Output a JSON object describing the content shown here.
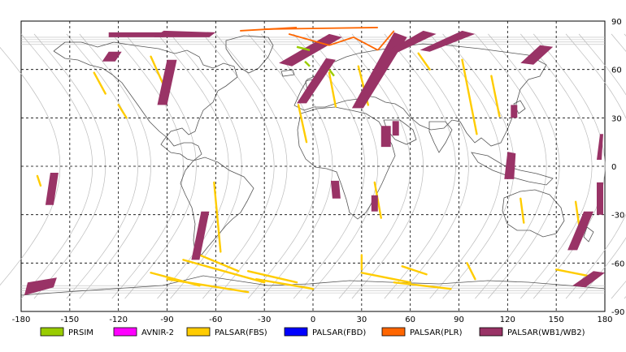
{
  "map": {
    "lon_range": [
      -180,
      180
    ],
    "lat_range": [
      -90,
      90
    ],
    "lon_ticks": [
      "-180",
      "-150",
      "-120",
      "-90",
      "-60",
      "-30",
      "0",
      "30",
      "60",
      "90",
      "120",
      "150",
      "180"
    ],
    "lat_ticks": [
      "90",
      "60",
      "30",
      "0",
      "-30",
      "-60",
      "-90"
    ],
    "grid": "dashed",
    "projection": "equirectangular"
  },
  "legend": {
    "placement": "bottom",
    "items": [
      {
        "label": "PRSIM",
        "color": "#99cc00"
      },
      {
        "label": "AVNIR-2",
        "color": "#ff00ff"
      },
      {
        "label": "PALSAR(FBS)",
        "color": "#ffcc00"
      },
      {
        "label": "PALSAR(FBD)",
        "color": "#0000ff"
      },
      {
        "label": "PALSAR(PLR)",
        "color": "#ff6600"
      },
      {
        "label": "PALSAR(WB1/WB2)",
        "color": "#993366"
      }
    ]
  },
  "colors": {
    "orbit_track": "#bbbbbb",
    "coastline": "#555555",
    "grid": "#000000"
  },
  "observations": {
    "wb": [
      [
        [
          -126,
          80
        ],
        [
          -92,
          80
        ],
        [
          -92,
          83
        ],
        [
          -126,
          83
        ]
      ],
      [
        [
          -130,
          65
        ],
        [
          -122,
          65
        ],
        [
          -118,
          71
        ],
        [
          -126,
          71
        ]
      ],
      [
        [
          -96,
          38
        ],
        [
          -90,
          38
        ],
        [
          -84,
          66
        ],
        [
          -90,
          66
        ]
      ],
      [
        [
          -75,
          -58
        ],
        [
          -70,
          -58
        ],
        [
          -64,
          -28
        ],
        [
          -69,
          -28
        ]
      ],
      [
        [
          -98,
          80
        ],
        [
          -64,
          80
        ],
        [
          -60,
          83
        ],
        [
          -92,
          84
        ]
      ],
      [
        [
          -10,
          39
        ],
        [
          -4,
          39
        ],
        [
          14,
          66
        ],
        [
          8,
          67
        ]
      ],
      [
        [
          -21,
          64
        ],
        [
          -13,
          62
        ],
        [
          18,
          80
        ],
        [
          10,
          82
        ]
      ],
      [
        [
          24,
          36
        ],
        [
          31,
          36
        ],
        [
          58,
          80
        ],
        [
          50,
          83
        ]
      ],
      [
        [
          45,
          71
        ],
        [
          51,
          70
        ],
        [
          76,
          82
        ],
        [
          68,
          84
        ]
      ],
      [
        [
          66,
          72
        ],
        [
          72,
          71
        ],
        [
          100,
          82
        ],
        [
          92,
          84
        ]
      ],
      [
        [
          128,
          64
        ],
        [
          136,
          63
        ],
        [
          148,
          74
        ],
        [
          140,
          75
        ]
      ],
      [
        [
          118,
          -8
        ],
        [
          124,
          -8
        ],
        [
          125,
          8
        ],
        [
          120,
          9
        ]
      ],
      [
        [
          122,
          30
        ],
        [
          126,
          30
        ],
        [
          126,
          38
        ],
        [
          122,
          38
        ]
      ],
      [
        [
          42,
          12
        ],
        [
          48,
          12
        ],
        [
          48,
          25
        ],
        [
          42,
          25
        ]
      ],
      [
        [
          12,
          -20
        ],
        [
          17,
          -20
        ],
        [
          16,
          -9
        ],
        [
          11,
          -9
        ]
      ],
      [
        [
          36,
          -28
        ],
        [
          40,
          -28
        ],
        [
          40,
          -18
        ],
        [
          36,
          -18
        ]
      ],
      [
        [
          49,
          19
        ],
        [
          53,
          19
        ],
        [
          53,
          28
        ],
        [
          49,
          28
        ]
      ],
      [
        [
          -165,
          -24
        ],
        [
          -160,
          -24
        ],
        [
          -157,
          -4
        ],
        [
          -162,
          -4
        ]
      ],
      [
        [
          -178,
          -80
        ],
        [
          -176,
          -72
        ],
        [
          -158,
          -69
        ],
        [
          -160,
          -75
        ]
      ],
      [
        [
          157,
          -52
        ],
        [
          163,
          -52
        ],
        [
          173,
          -28
        ],
        [
          167,
          -28
        ]
      ],
      [
        [
          160,
          -74
        ],
        [
          168,
          -75
        ],
        [
          180,
          -66
        ],
        [
          173,
          -65
        ]
      ],
      [
        [
          175,
          -30
        ],
        [
          179,
          -30
        ],
        [
          179,
          -10
        ],
        [
          175,
          -10
        ]
      ],
      [
        [
          177,
          20
        ],
        [
          179,
          20
        ],
        [
          178,
          4
        ],
        [
          175,
          4
        ]
      ]
    ],
    "fbs": [
      [
        [
          -135,
          58
        ],
        [
          -128,
          45
        ]
      ],
      [
        [
          -100,
          68
        ],
        [
          -92,
          50
        ]
      ],
      [
        [
          -61,
          -10
        ],
        [
          -57,
          -53
        ]
      ],
      [
        [
          -9,
          38
        ],
        [
          -4,
          15
        ]
      ],
      [
        [
          10,
          58
        ],
        [
          14,
          37
        ]
      ],
      [
        [
          28,
          62
        ],
        [
          34,
          38
        ]
      ],
      [
        [
          38,
          -10
        ],
        [
          42,
          -32
        ]
      ],
      [
        [
          65,
          70
        ],
        [
          72,
          60
        ]
      ],
      [
        [
          92,
          66
        ],
        [
          101,
          20
        ]
      ],
      [
        [
          110,
          56
        ],
        [
          115,
          31
        ]
      ],
      [
        [
          128,
          -20
        ],
        [
          130,
          -35
        ]
      ],
      [
        [
          162,
          -22
        ],
        [
          164,
          -36
        ]
      ],
      [
        [
          -70,
          -55
        ],
        [
          -46,
          -65
        ]
      ],
      [
        [
          -80,
          -58
        ],
        [
          -30,
          -72
        ]
      ],
      [
        [
          -90,
          -70
        ],
        [
          -40,
          -78
        ]
      ],
      [
        [
          -100,
          -66
        ],
        [
          -70,
          -74
        ]
      ],
      [
        [
          -40,
          -65
        ],
        [
          -10,
          -72
        ]
      ],
      [
        [
          -35,
          -70
        ],
        [
          0,
          -76
        ]
      ],
      [
        [
          30,
          -55
        ],
        [
          30,
          -64
        ]
      ],
      [
        [
          55,
          -62
        ],
        [
          70,
          -67
        ]
      ],
      [
        [
          30,
          -66
        ],
        [
          60,
          -72
        ]
      ],
      [
        [
          50,
          -72
        ],
        [
          85,
          -76
        ]
      ],
      [
        [
          95,
          -60
        ],
        [
          100,
          -70
        ]
      ],
      [
        [
          150,
          -64
        ],
        [
          175,
          -69
        ]
      ],
      [
        [
          -120,
          38
        ],
        [
          -115,
          30
        ]
      ],
      [
        [
          -170,
          -6
        ],
        [
          -168,
          -12
        ]
      ]
    ],
    "plr": [
      [
        [
          -30,
          85
        ],
        [
          40,
          86
        ]
      ],
      [
        [
          -15,
          82
        ],
        [
          10,
          75
        ]
      ],
      [
        [
          10,
          75
        ],
        [
          25,
          80
        ]
      ],
      [
        [
          25,
          80
        ],
        [
          40,
          72
        ]
      ],
      [
        [
          40,
          72
        ],
        [
          50,
          84
        ]
      ],
      [
        [
          -45,
          84
        ],
        [
          -10,
          86
        ]
      ]
    ],
    "prism": [
      [
        [
          -10,
          74
        ],
        [
          -2,
          72
        ]
      ],
      [
        [
          -5,
          65
        ],
        [
          -2,
          62
        ]
      ],
      [
        [
          10,
          60
        ],
        [
          13,
          56
        ]
      ]
    ]
  }
}
